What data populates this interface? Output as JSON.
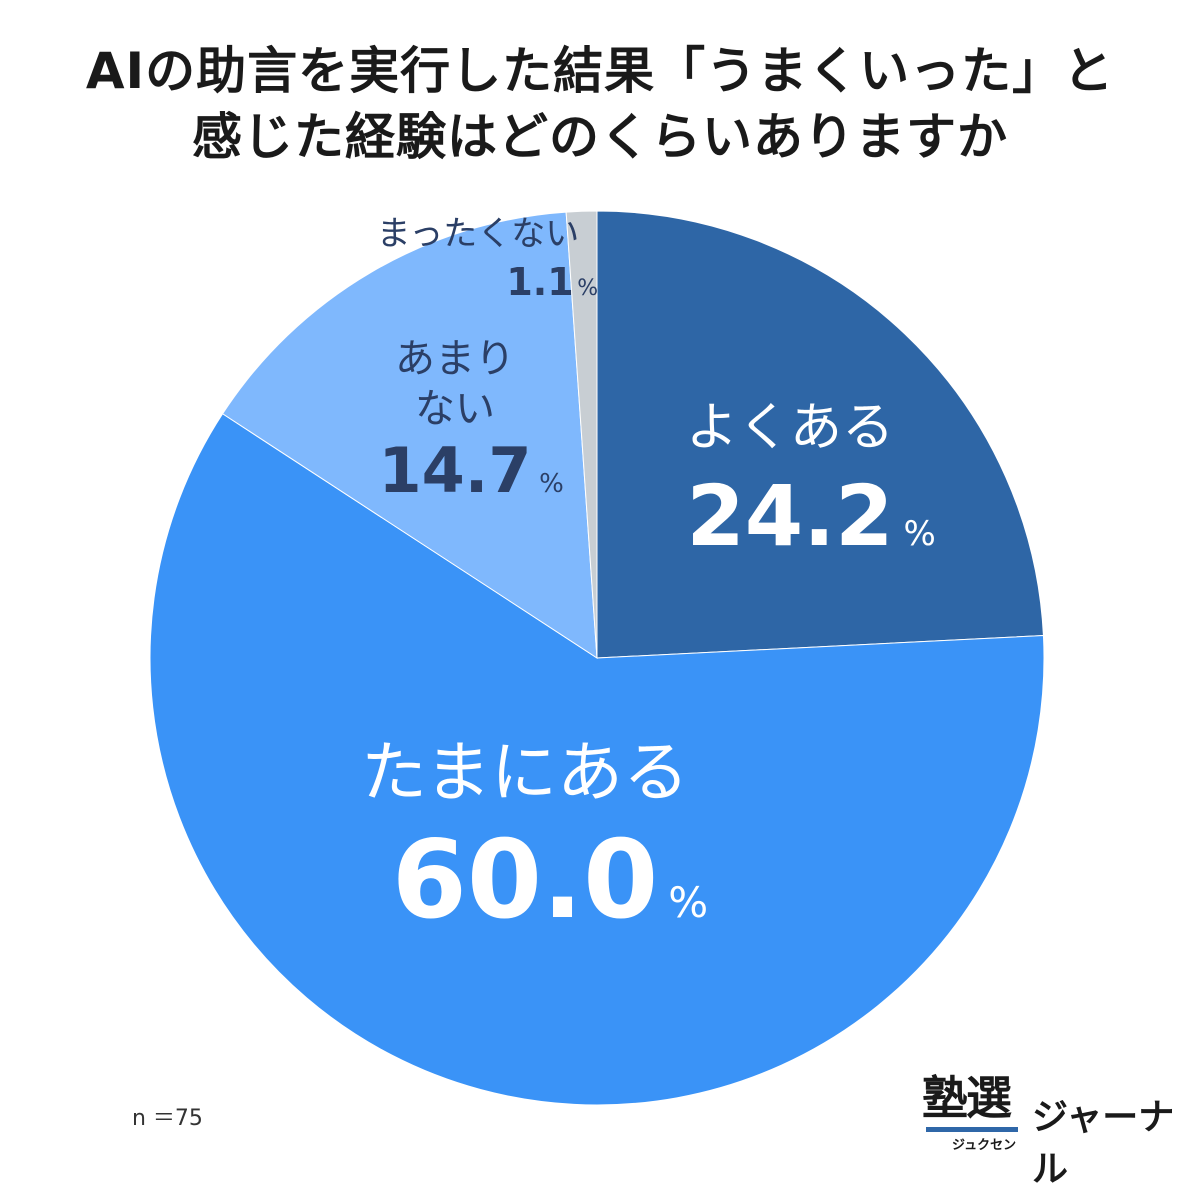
{
  "title_lines": [
    "AIの助言を実行した結果「うまくいった」と",
    "感じた経験はどのくらいありますか"
  ],
  "sample_size": "n ＝75",
  "logo": {
    "mark": "塾選",
    "reading": "ジュクセン",
    "word": "ジャーナル"
  },
  "percent_sign": "%",
  "colors": {
    "よくある": "#2e66a6",
    "たまにある": "#3a93f7",
    "あまりない": "#7fb8fd",
    "まったくない": "#c8ced3"
  },
  "chart_data": {
    "type": "pie",
    "start": "12 o'clock",
    "direction": "clockwise",
    "slices": [
      {
        "label": "よくある",
        "label_lines": [
          "よくある"
        ],
        "value": 24.2,
        "value_text": "24.2"
      },
      {
        "label": "たまにある",
        "label_lines": [
          "たまにある"
        ],
        "value": 60.0,
        "value_text": "60.0"
      },
      {
        "label": "あまりない",
        "label_lines": [
          "あまり",
          "ない"
        ],
        "value": 14.7,
        "value_text": "14.7"
      },
      {
        "label": "まったくない",
        "label_lines": [
          "まったくない"
        ],
        "value": 1.1,
        "value_text": "1.1"
      }
    ]
  }
}
